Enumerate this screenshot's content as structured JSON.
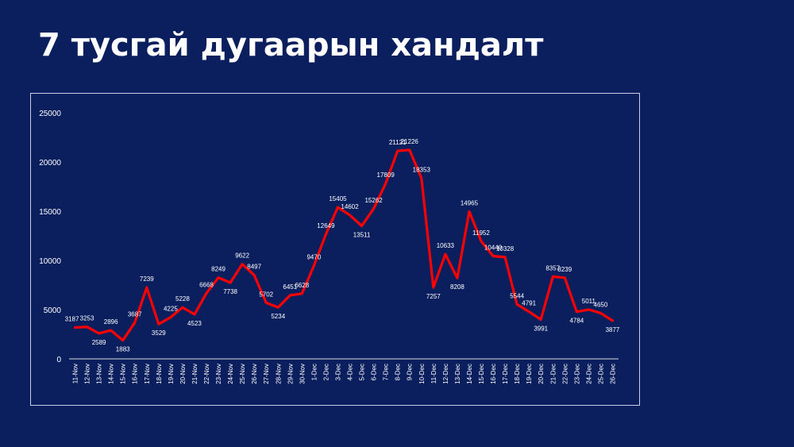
{
  "slide": {
    "title": "7 тусгай дугаарын хандалт",
    "background": "#0b1f5e"
  },
  "chart_data": {
    "type": "line",
    "title": "",
    "xlabel": "",
    "ylabel": "",
    "ylim": [
      0,
      25000
    ],
    "yticks": [
      0,
      5000,
      10000,
      15000,
      20000,
      25000
    ],
    "grid": false,
    "legend": "none",
    "line_color": "#ff0000",
    "categories": [
      "11-Nov",
      "12-Nov",
      "13-Nov",
      "14-Nov",
      "15-Nov",
      "16-Nov",
      "17-Nov",
      "18-Nov",
      "19-Nov",
      "20-Nov",
      "21-Nov",
      "22-Nov",
      "23-Nov",
      "24-Nov",
      "25-Nov",
      "26-Nov",
      "27-Nov",
      "28-Nov",
      "29-Nov",
      "30-Nov",
      "1-Dec",
      "2-Dec",
      "3-Dec",
      "4-Dec",
      "5-Dec",
      "6-Dec",
      "7-Dec",
      "8-Dec",
      "9-Dec",
      "10-Dec",
      "11-Dec",
      "12-Dec",
      "13-Dec",
      "14-Dec",
      "15-Dec",
      "16-Dec",
      "17-Dec",
      "18-Dec",
      "19-Dec",
      "20-Dec",
      "21-Dec",
      "22-Dec",
      "23-Dec",
      "24-Dec",
      "25-Dec",
      "26-Dec"
    ],
    "series": [
      {
        "values": [
          3187,
          3253,
          2589,
          2896,
          1883,
          3687,
          7239,
          3529,
          4225,
          5228,
          4523,
          6668,
          8249,
          7738,
          9622,
          8497,
          5702,
          5234,
          6451,
          6628,
          9470,
          12649,
          15405,
          14602,
          13511,
          15262,
          17809,
          21121,
          21226,
          18353,
          7257,
          10633,
          8208,
          14965,
          11952,
          10440,
          10328,
          5544,
          4791,
          3991,
          8357,
          8239,
          4784,
          5011,
          4650,
          3877
        ]
      }
    ]
  }
}
